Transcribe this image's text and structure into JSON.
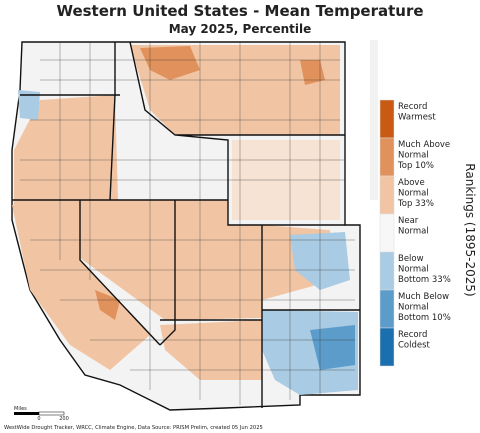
{
  "header": {
    "title": "Western United States - Mean Temperature",
    "subtitle": "May 2025, Percentile"
  },
  "legend": {
    "title": "Rankings (1895-2025)",
    "items": [
      {
        "label": [
          "Record",
          "Warmest"
        ],
        "color": "#c95a12"
      },
      {
        "label": [
          "Much Above",
          "Normal",
          "Top 10%"
        ],
        "color": "#e0915c"
      },
      {
        "label": [
          "Above",
          "Normal",
          "Top 33%"
        ],
        "color": "#f1c5a3"
      },
      {
        "label": [
          "Near",
          "Normal"
        ],
        "color": "#f7f7f7"
      },
      {
        "label": [
          "Below",
          "Normal",
          "Bottom 33%"
        ],
        "color": "#a9cbe3"
      },
      {
        "label": [
          "Much Below",
          "Normal",
          "Bottom 10%"
        ],
        "color": "#5c9ccb"
      },
      {
        "label": [
          "Record",
          "Coldest"
        ],
        "color": "#1b6fae"
      }
    ]
  },
  "scale": {
    "title": "Miles",
    "ticks": [
      "0",
      "200"
    ]
  },
  "footer": "WestWide Drought Tracker, WRCC, Climate Engine, Data Source: PRISM Prelim, created 05 Jun 2025"
}
